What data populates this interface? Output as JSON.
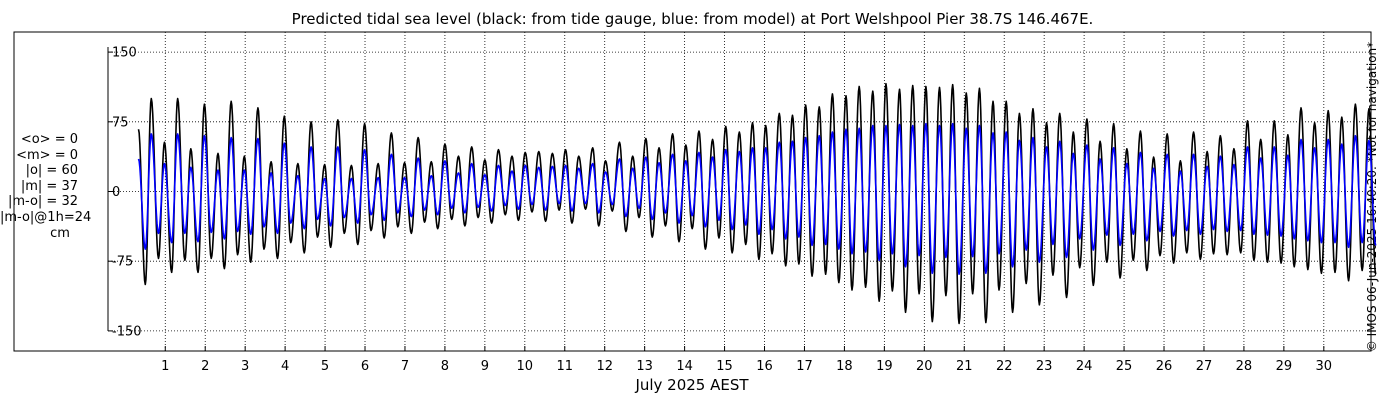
{
  "title": "Predicted tidal sea level (black: from tide gauge, blue: from model) at Port Welshpool Pier 38.7S 146.467E.",
  "stats": [
    "<o> = 0",
    "<m> = 0",
    "|o| = 60",
    "|m| = 37",
    "|m-o| = 32",
    "|m-o|@1h=24"
  ],
  "stats_unit": "cm",
  "copyright": "© IMOS 06-Jun-2025 16:40:20. *Not for navigation*",
  "colors": {
    "gauge": "#000000",
    "model": "#0000ff",
    "grid": "#000000"
  },
  "chart_data": {
    "type": "line",
    "title": "Predicted tidal sea level (black: from tide gauge, blue: from model) at Port Welshpool Pier 38.7S 146.467E.",
    "xlabel": "July 2025 AEST",
    "ylabel": "",
    "xlim": [
      0.17,
      31.4
    ],
    "ylim": [
      -160,
      160
    ],
    "yticks": [
      -150,
      -75,
      0,
      75,
      150
    ],
    "ytick_labels": [
      "-150",
      "-75",
      "0",
      "75",
      "150"
    ],
    "xticks": [
      1,
      2,
      3,
      4,
      5,
      6,
      7,
      8,
      9,
      10,
      11,
      12,
      13,
      14,
      15,
      16,
      17,
      18,
      19,
      20,
      21,
      22,
      23,
      24,
      25,
      26,
      27,
      28,
      29,
      30
    ],
    "xtick_labels": [
      "1",
      "2",
      "3",
      "4",
      "5",
      "6",
      "7",
      "8",
      "9",
      "10",
      "11",
      "12",
      "13",
      "14",
      "15",
      "16",
      "17",
      "18",
      "19",
      "20",
      "21",
      "22",
      "23",
      "24",
      "25",
      "26",
      "27",
      "28",
      "29",
      "30"
    ],
    "grid": "dotted",
    "series": [
      {
        "role": "gauge",
        "color": "#000000",
        "x": [
          0.33,
          0.5,
          0.65,
          0.83,
          0.98,
          1.16,
          1.31,
          1.49,
          1.64,
          1.82,
          1.98,
          2.15,
          2.32,
          2.48,
          2.65,
          2.81,
          2.98,
          3.14,
          3.32,
          3.47,
          3.65,
          3.81,
          3.98,
          4.14,
          4.32,
          4.48,
          4.65,
          4.81,
          4.99,
          5.14,
          5.32,
          5.48,
          5.66,
          5.82,
          5.99,
          6.15,
          6.33,
          6.48,
          6.66,
          6.82,
          6.99,
          7.16,
          7.33,
          7.49,
          7.66,
          7.82,
          8.0,
          8.17,
          8.34,
          8.5,
          8.67,
          8.83,
          9.0,
          9.17,
          9.34,
          9.51,
          9.68,
          9.84,
          10.01,
          10.18,
          10.35,
          10.52,
          10.69,
          10.86,
          11.02,
          11.18,
          11.35,
          11.52,
          11.7,
          11.85,
          12.02,
          12.19,
          12.37,
          12.53,
          12.7,
          12.86,
          13.03,
          13.19,
          13.36,
          13.52,
          13.7,
          13.86,
          14.03,
          14.19,
          14.36,
          14.52,
          14.7,
          14.86,
          15.03,
          15.19,
          15.37,
          15.53,
          15.7,
          15.86,
          16.03,
          16.19,
          16.37,
          16.53,
          16.7,
          16.86,
          17.03,
          17.19,
          17.37,
          17.53,
          17.7,
          17.86,
          18.04,
          18.19,
          18.37,
          18.53,
          18.71,
          18.87,
          19.04,
          19.2,
          19.38,
          19.53,
          19.71,
          19.87,
          20.04,
          20.2,
          20.38,
          20.54,
          20.71,
          20.87,
          21.05,
          21.21,
          21.38,
          21.54,
          21.72,
          21.87,
          22.05,
          22.21,
          22.38,
          22.55,
          22.72,
          22.88,
          23.06,
          23.22,
          23.39,
          23.56,
          23.73,
          23.89,
          24.07,
          24.23,
          24.4,
          24.57,
          24.74,
          24.9,
          25.07,
          25.23,
          25.41,
          25.57,
          25.74,
          25.9,
          26.08,
          26.24,
          26.41,
          26.57,
          26.74,
          26.91,
          27.08,
          27.24,
          27.41,
          27.58,
          27.75,
          27.92,
          28.09,
          28.25,
          28.42,
          28.59,
          28.76,
          28.93,
          29.1,
          29.26,
          29.43,
          29.6,
          29.77,
          29.94,
          30.11,
          30.28,
          30.45,
          30.62,
          30.79,
          30.96,
          31.13,
          31.3
        ],
        "y": [
          67,
          -100,
          100,
          -72,
          53,
          -87,
          100,
          -74,
          46,
          -87,
          94,
          -72,
          41,
          -83,
          97,
          -68,
          38,
          -76,
          90,
          -62,
          32,
          -72,
          81,
          -55,
          30,
          -66,
          75,
          -49,
          29,
          -60,
          77,
          -45,
          28,
          -57,
          73,
          -42,
          30,
          -50,
          63,
          -38,
          31,
          -45,
          58,
          -33,
          32,
          -40,
          51,
          -30,
          38,
          -37,
          48,
          -28,
          34,
          -34,
          45,
          -25,
          38,
          -31,
          42,
          -22,
          43,
          -32,
          41,
          -20,
          45,
          -34,
          38,
          -19,
          47,
          -37,
          33,
          -21,
          53,
          -43,
          38,
          -28,
          57,
          -49,
          47,
          -37,
          62,
          -54,
          50,
          -40,
          65,
          -62,
          56,
          -50,
          70,
          -66,
          64,
          -57,
          74,
          -73,
          71,
          -67,
          84,
          -80,
          82,
          -78,
          93,
          -91,
          91,
          -89,
          105,
          -98,
          103,
          -106,
          113,
          -103,
          108,
          -118,
          116,
          -107,
          110,
          -130,
          114,
          -110,
          113,
          -140,
          112,
          -112,
          115,
          -142,
          106,
          -110,
          111,
          -141,
          97,
          -106,
          97,
          -130,
          84,
          -99,
          89,
          -122,
          74,
          -90,
          84,
          -114,
          64,
          -82,
          78,
          -101,
          54,
          -76,
          73,
          -93,
          46,
          -74,
          65,
          -85,
          37,
          -69,
          62,
          -77,
          33,
          -66,
          64,
          -73,
          43,
          -67,
          60,
          -68,
          46,
          -66,
          76,
          -74,
          56,
          -76,
          76,
          -77,
          61,
          -81,
          90,
          -84,
          74,
          -88,
          87,
          -87,
          80,
          -96,
          94,
          -85,
          89,
          -89
        ]
      },
      {
        "role": "model",
        "color": "#0000ff",
        "x": [
          0.33,
          0.5,
          0.65,
          0.83,
          0.98,
          1.16,
          1.31,
          1.49,
          1.64,
          1.82,
          1.98,
          2.15,
          2.32,
          2.48,
          2.65,
          2.81,
          2.98,
          3.14,
          3.32,
          3.47,
          3.65,
          3.81,
          3.98,
          4.14,
          4.32,
          4.48,
          4.65,
          4.81,
          4.99,
          5.14,
          5.32,
          5.48,
          5.66,
          5.82,
          5.99,
          6.15,
          6.33,
          6.48,
          6.66,
          6.82,
          6.99,
          7.16,
          7.33,
          7.49,
          7.66,
          7.82,
          8.0,
          8.17,
          8.34,
          8.5,
          8.67,
          8.83,
          9.0,
          9.17,
          9.34,
          9.51,
          9.68,
          9.84,
          10.01,
          10.18,
          10.35,
          10.52,
          10.69,
          10.86,
          11.02,
          11.18,
          11.35,
          11.52,
          11.7,
          11.85,
          12.02,
          12.19,
          12.37,
          12.53,
          12.7,
          12.86,
          13.03,
          13.19,
          13.36,
          13.52,
          13.7,
          13.86,
          14.03,
          14.19,
          14.36,
          14.52,
          14.7,
          14.86,
          15.03,
          15.19,
          15.37,
          15.53,
          15.7,
          15.86,
          16.03,
          16.19,
          16.37,
          16.53,
          16.7,
          16.86,
          17.03,
          17.19,
          17.37,
          17.53,
          17.7,
          17.86,
          18.04,
          18.19,
          18.37,
          18.53,
          18.71,
          18.87,
          19.04,
          19.2,
          19.38,
          19.53,
          19.71,
          19.87,
          20.04,
          20.2,
          20.38,
          20.54,
          20.71,
          20.87,
          21.05,
          21.21,
          21.38,
          21.54,
          21.72,
          21.87,
          22.05,
          22.21,
          22.38,
          22.55,
          22.72,
          22.88,
          23.06,
          23.22,
          23.39,
          23.56,
          23.73,
          23.89,
          24.07,
          24.23,
          24.4,
          24.57,
          24.74,
          24.9,
          25.07,
          25.23,
          25.41,
          25.57,
          25.74,
          25.9,
          26.08,
          26.24,
          26.41,
          26.57,
          26.74,
          26.91,
          27.08,
          27.24,
          27.41,
          27.58,
          27.75,
          27.92,
          28.09,
          28.25,
          28.42,
          28.59,
          28.76,
          28.93,
          29.1,
          29.26,
          29.43,
          29.6,
          29.77,
          29.94,
          30.11,
          30.28,
          30.45,
          30.62,
          30.79,
          30.96,
          31.13,
          31.3
        ],
        "y": [
          35,
          -62,
          62,
          -45,
          30,
          -55,
          62,
          -45,
          26,
          -54,
          60,
          -44,
          23,
          -51,
          58,
          -43,
          23,
          -46,
          57,
          -38,
          20,
          -45,
          52,
          -34,
          17,
          -40,
          48,
          -30,
          14,
          -37,
          48,
          -28,
          14,
          -34,
          45,
          -25,
          15,
          -31,
          40,
          -23,
          15,
          -27,
          36,
          -20,
          17,
          -25,
          33,
          -18,
          20,
          -23,
          30,
          -17,
          18,
          -21,
          28,
          -15,
          22,
          -19,
          28,
          -14,
          26,
          -20,
          27,
          -13,
          28,
          -21,
          25,
          -13,
          30,
          -23,
          21,
          -14,
          35,
          -27,
          25,
          -18,
          37,
          -30,
          31,
          -23,
          40,
          -34,
          33,
          -26,
          42,
          -38,
          37,
          -31,
          45,
          -41,
          43,
          -36,
          47,
          -46,
          47,
          -41,
          53,
          -51,
          54,
          -49,
          58,
          -58,
          60,
          -57,
          64,
          -62,
          67,
          -67,
          68,
          -65,
          71,
          -74,
          71,
          -67,
          72,
          -81,
          71,
          -69,
          73,
          -88,
          71,
          -71,
          73,
          -89,
          68,
          -70,
          71,
          -88,
          63,
          -67,
          64,
          -81,
          55,
          -63,
          58,
          -76,
          48,
          -57,
          54,
          -71,
          41,
          -51,
          50,
          -63,
          35,
          -47,
          47,
          -58,
          30,
          -46,
          42,
          -53,
          25,
          -43,
          40,
          -48,
          22,
          -42,
          40,
          -46,
          27,
          -41,
          38,
          -43,
          29,
          -42,
          48,
          -46,
          36,
          -47,
          48,
          -48,
          39,
          -51,
          56,
          -53,
          47,
          -55,
          56,
          -55,
          51,
          -60,
          60,
          -55,
          55,
          -58
        ]
      }
    ]
  }
}
